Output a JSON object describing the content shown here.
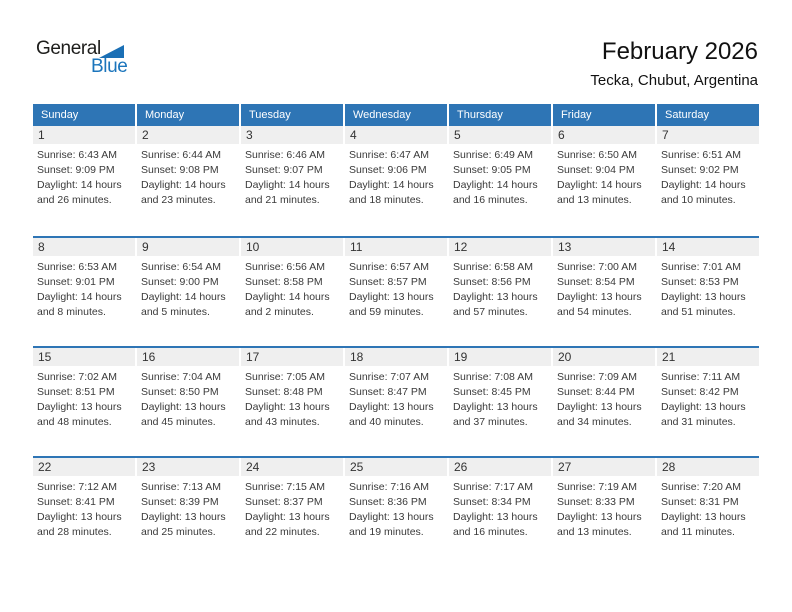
{
  "logo": {
    "word1": "General",
    "word2": "Blue"
  },
  "header": {
    "title": "February 2026",
    "subtitle": "Tecka, Chubut, Argentina"
  },
  "calendar": {
    "day_headers": [
      "Sunday",
      "Monday",
      "Tuesday",
      "Wednesday",
      "Thursday",
      "Friday",
      "Saturday"
    ],
    "labels": {
      "sunrise": "Sunrise:",
      "sunset": "Sunset:",
      "daylight": "Daylight:"
    },
    "weeks": [
      [
        {
          "day": "1",
          "sunrise": "6:43 AM",
          "sunset": "9:09 PM",
          "daylight_l1": "14 hours",
          "daylight_l2": "and 26 minutes."
        },
        {
          "day": "2",
          "sunrise": "6:44 AM",
          "sunset": "9:08 PM",
          "daylight_l1": "14 hours",
          "daylight_l2": "and 23 minutes."
        },
        {
          "day": "3",
          "sunrise": "6:46 AM",
          "sunset": "9:07 PM",
          "daylight_l1": "14 hours",
          "daylight_l2": "and 21 minutes."
        },
        {
          "day": "4",
          "sunrise": "6:47 AM",
          "sunset": "9:06 PM",
          "daylight_l1": "14 hours",
          "daylight_l2": "and 18 minutes."
        },
        {
          "day": "5",
          "sunrise": "6:49 AM",
          "sunset": "9:05 PM",
          "daylight_l1": "14 hours",
          "daylight_l2": "and 16 minutes."
        },
        {
          "day": "6",
          "sunrise": "6:50 AM",
          "sunset": "9:04 PM",
          "daylight_l1": "14 hours",
          "daylight_l2": "and 13 minutes."
        },
        {
          "day": "7",
          "sunrise": "6:51 AM",
          "sunset": "9:02 PM",
          "daylight_l1": "14 hours",
          "daylight_l2": "and 10 minutes."
        }
      ],
      [
        {
          "day": "8",
          "sunrise": "6:53 AM",
          "sunset": "9:01 PM",
          "daylight_l1": "14 hours",
          "daylight_l2": "and 8 minutes."
        },
        {
          "day": "9",
          "sunrise": "6:54 AM",
          "sunset": "9:00 PM",
          "daylight_l1": "14 hours",
          "daylight_l2": "and 5 minutes."
        },
        {
          "day": "10",
          "sunrise": "6:56 AM",
          "sunset": "8:58 PM",
          "daylight_l1": "14 hours",
          "daylight_l2": "and 2 minutes."
        },
        {
          "day": "11",
          "sunrise": "6:57 AM",
          "sunset": "8:57 PM",
          "daylight_l1": "13 hours",
          "daylight_l2": "and 59 minutes."
        },
        {
          "day": "12",
          "sunrise": "6:58 AM",
          "sunset": "8:56 PM",
          "daylight_l1": "13 hours",
          "daylight_l2": "and 57 minutes."
        },
        {
          "day": "13",
          "sunrise": "7:00 AM",
          "sunset": "8:54 PM",
          "daylight_l1": "13 hours",
          "daylight_l2": "and 54 minutes."
        },
        {
          "day": "14",
          "sunrise": "7:01 AM",
          "sunset": "8:53 PM",
          "daylight_l1": "13 hours",
          "daylight_l2": "and 51 minutes."
        }
      ],
      [
        {
          "day": "15",
          "sunrise": "7:02 AM",
          "sunset": "8:51 PM",
          "daylight_l1": "13 hours",
          "daylight_l2": "and 48 minutes."
        },
        {
          "day": "16",
          "sunrise": "7:04 AM",
          "sunset": "8:50 PM",
          "daylight_l1": "13 hours",
          "daylight_l2": "and 45 minutes."
        },
        {
          "day": "17",
          "sunrise": "7:05 AM",
          "sunset": "8:48 PM",
          "daylight_l1": "13 hours",
          "daylight_l2": "and 43 minutes."
        },
        {
          "day": "18",
          "sunrise": "7:07 AM",
          "sunset": "8:47 PM",
          "daylight_l1": "13 hours",
          "daylight_l2": "and 40 minutes."
        },
        {
          "day": "19",
          "sunrise": "7:08 AM",
          "sunset": "8:45 PM",
          "daylight_l1": "13 hours",
          "daylight_l2": "and 37 minutes."
        },
        {
          "day": "20",
          "sunrise": "7:09 AM",
          "sunset": "8:44 PM",
          "daylight_l1": "13 hours",
          "daylight_l2": "and 34 minutes."
        },
        {
          "day": "21",
          "sunrise": "7:11 AM",
          "sunset": "8:42 PM",
          "daylight_l1": "13 hours",
          "daylight_l2": "and 31 minutes."
        }
      ],
      [
        {
          "day": "22",
          "sunrise": "7:12 AM",
          "sunset": "8:41 PM",
          "daylight_l1": "13 hours",
          "daylight_l2": "and 28 minutes."
        },
        {
          "day": "23",
          "sunrise": "7:13 AM",
          "sunset": "8:39 PM",
          "daylight_l1": "13 hours",
          "daylight_l2": "and 25 minutes."
        },
        {
          "day": "24",
          "sunrise": "7:15 AM",
          "sunset": "8:37 PM",
          "daylight_l1": "13 hours",
          "daylight_l2": "and 22 minutes."
        },
        {
          "day": "25",
          "sunrise": "7:16 AM",
          "sunset": "8:36 PM",
          "daylight_l1": "13 hours",
          "daylight_l2": "and 19 minutes."
        },
        {
          "day": "26",
          "sunrise": "7:17 AM",
          "sunset": "8:34 PM",
          "daylight_l1": "13 hours",
          "daylight_l2": "and 16 minutes."
        },
        {
          "day": "27",
          "sunrise": "7:19 AM",
          "sunset": "8:33 PM",
          "daylight_l1": "13 hours",
          "daylight_l2": "and 13 minutes."
        },
        {
          "day": "28",
          "sunrise": "7:20 AM",
          "sunset": "8:31 PM",
          "daylight_l1": "13 hours",
          "daylight_l2": "and 11 minutes."
        }
      ]
    ]
  },
  "colors": {
    "accent_blue": "#2e75b5",
    "logo_blue": "#1b75bc",
    "day_number_row_gray": "#efefef"
  }
}
